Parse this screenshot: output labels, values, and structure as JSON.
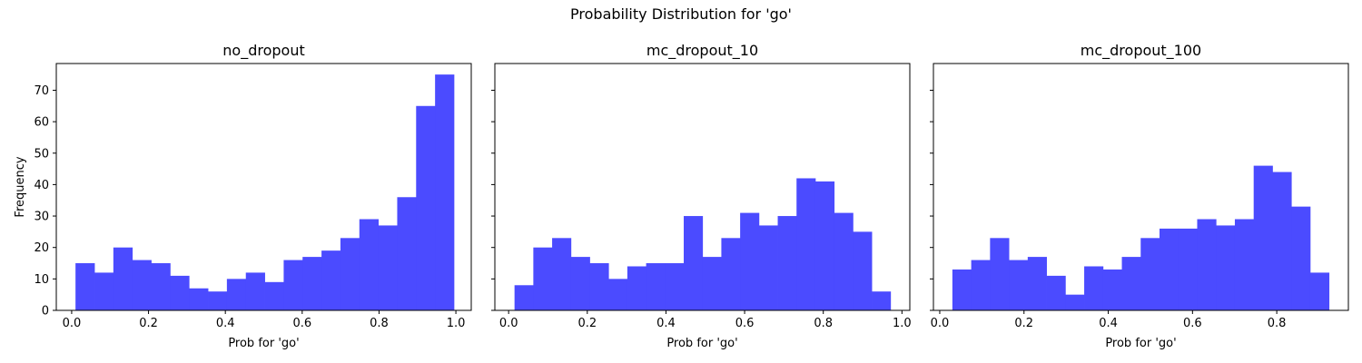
{
  "figure": {
    "title": "Probability Distribution for 'go'"
  },
  "chart_data": [
    {
      "type": "bar",
      "title": "no_dropout",
      "xlabel": "Prob for 'go'",
      "ylabel": "Frequency",
      "xlim": [
        -0.04,
        1.04
      ],
      "ylim": [
        0,
        78.5
      ],
      "xticks": [
        0.0,
        0.2,
        0.4,
        0.6,
        0.8,
        1.0
      ],
      "xtick_labels": [
        "0.0",
        "0.2",
        "0.4",
        "0.6",
        "0.8",
        "1.0"
      ],
      "yticks": [
        0,
        10,
        20,
        30,
        40,
        50,
        60,
        70
      ],
      "ytick_labels": [
        "0",
        "10",
        "20",
        "30",
        "40",
        "50",
        "60",
        "70"
      ],
      "bin_edges": [
        0.01,
        0.0593,
        0.1085,
        0.1578,
        0.207,
        0.2563,
        0.3055,
        0.3548,
        0.404,
        0.4533,
        0.5025,
        0.5518,
        0.601,
        0.6503,
        0.6995,
        0.7488,
        0.798,
        0.8473,
        0.8965,
        0.9458,
        0.995
      ],
      "values": [
        15,
        12,
        20,
        16,
        15,
        11,
        7,
        6,
        10,
        12,
        9,
        16,
        17,
        19,
        23,
        29,
        27,
        36,
        65,
        75
      ],
      "color": "#4b4bff"
    },
    {
      "type": "bar",
      "title": "mc_dropout_10",
      "xlabel": "Prob for 'go'",
      "ylabel": "",
      "xlim": [
        -0.035,
        1.02
      ],
      "ylim": [
        0,
        78.5
      ],
      "xticks": [
        0.0,
        0.2,
        0.4,
        0.6,
        0.8,
        1.0
      ],
      "xtick_labels": [
        "0.0",
        "0.2",
        "0.4",
        "0.6",
        "0.8",
        "1.0"
      ],
      "yticks": [
        0,
        10,
        20,
        30,
        40,
        50,
        60,
        70
      ],
      "ytick_labels": [
        "",
        "",
        "",
        "",
        "",
        "",
        "",
        ""
      ],
      "bin_edges": [
        0.015,
        0.0628,
        0.1106,
        0.1584,
        0.2062,
        0.254,
        0.3018,
        0.3496,
        0.3974,
        0.4452,
        0.493,
        0.5408,
        0.5886,
        0.6364,
        0.6842,
        0.732,
        0.7798,
        0.8276,
        0.8754,
        0.9232,
        0.971
      ],
      "values": [
        8,
        20,
        23,
        17,
        15,
        10,
        14,
        15,
        15,
        30,
        17,
        23,
        31,
        27,
        30,
        42,
        41,
        31,
        25,
        6
      ],
      "color": "#4b4bff"
    },
    {
      "type": "bar",
      "title": "mc_dropout_100",
      "xlabel": "Prob for 'go'",
      "ylabel": "",
      "xlim": [
        -0.015,
        0.97
      ],
      "ylim": [
        0,
        78.5
      ],
      "xticks": [
        0.0,
        0.2,
        0.4,
        0.6,
        0.8
      ],
      "xtick_labels": [
        "0.0",
        "0.2",
        "0.4",
        "0.6",
        "0.8"
      ],
      "yticks": [
        0,
        10,
        20,
        30,
        40,
        50,
        60,
        70
      ],
      "ytick_labels": [
        "",
        "",
        "",
        "",
        "",
        "",
        "",
        ""
      ],
      "bin_edges": [
        0.03,
        0.0747,
        0.1194,
        0.1641,
        0.2088,
        0.2535,
        0.2982,
        0.3429,
        0.3876,
        0.4323,
        0.477,
        0.5217,
        0.5664,
        0.6111,
        0.6558,
        0.7005,
        0.7452,
        0.7899,
        0.8346,
        0.8793,
        0.924
      ],
      "values": [
        13,
        16,
        23,
        16,
        17,
        11,
        5,
        14,
        13,
        17,
        23,
        26,
        26,
        29,
        27,
        29,
        46,
        44,
        33,
        12
      ],
      "color": "#4b4bff"
    }
  ]
}
